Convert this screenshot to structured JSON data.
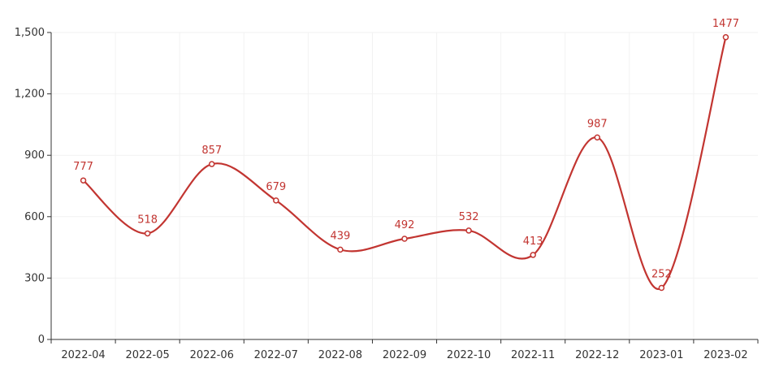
{
  "chart_data": {
    "type": "line",
    "title": "",
    "xlabel": "",
    "ylabel": "",
    "categories": [
      "2022-04",
      "2022-05",
      "2022-06",
      "2022-07",
      "2022-08",
      "2022-09",
      "2022-10",
      "2022-11",
      "2022-12",
      "2023-01",
      "2023-02"
    ],
    "series": [
      {
        "values": [
          777,
          518,
          857,
          679,
          439,
          492,
          532,
          413,
          987,
          252,
          1477
        ]
      }
    ],
    "ylim": [
      0,
      1500
    ],
    "y_ticks": [
      0,
      300,
      600,
      900,
      1200,
      1500
    ],
    "y_tick_labels": [
      "0",
      "300",
      "600",
      "900",
      "1,200",
      "1,500"
    ],
    "smooth": true,
    "show_data_labels": true,
    "grid": true,
    "color": "#c23531"
  }
}
